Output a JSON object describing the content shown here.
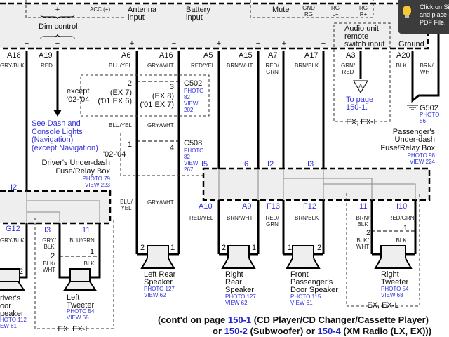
{
  "unit": {
    "plus": "+",
    "dim_control": "Dim control",
    "acc": "ACC (+)",
    "antenna": [
      "Antenna",
      "input"
    ],
    "battery": [
      "Battery",
      "input"
    ],
    "mute": "Mute",
    "gnd_rg": [
      "GND",
      "RG"
    ],
    "rg_l": [
      "RG",
      "L+"
    ],
    "rg_r": [
      "RG",
      "R+"
    ],
    "remote": [
      "Audio unit",
      "remote",
      "switch input"
    ],
    "ground": "Ground",
    "polarity": [
      "−",
      "−",
      "+",
      "−",
      "+",
      "−",
      "+",
      "−"
    ]
  },
  "pins_top": [
    "A18",
    "A19",
    "A6",
    "A16",
    "A5",
    "A15",
    "A7",
    "A17",
    "A3",
    "A20"
  ],
  "wires_top": [
    "GRY/BLK",
    "RED",
    "BLU/YEL",
    "GRY/WHT",
    "RED/YEL",
    "BRN/WHT",
    "RED/",
    "GRN",
    "BRN/BLK",
    "GRN/",
    "RED",
    "BLK",
    "BRN/",
    "WHT"
  ],
  "c502": {
    "except": [
      "except",
      "'02-'04"
    ],
    "pin2": [
      "2",
      "(EX 7)",
      "('01 EX 6)"
    ],
    "pin3": [
      "3",
      "(EX 8)",
      "('01 EX 7)"
    ],
    "name": "C502",
    "photo": [
      "PHOTO",
      "82",
      "VIEW",
      "202"
    ]
  },
  "mid_wires": [
    "BLU/YEL",
    "GRY/WHT"
  ],
  "see_dash": [
    "See Dash and",
    "Console Lights",
    "(Navigation)",
    "(except Navigation)"
  ],
  "c508": {
    "years": "'02-'04",
    "pin1": "1",
    "pin4": "4",
    "name": "C508",
    "photo": [
      "PHOTO",
      "82",
      "VIEW",
      "267"
    ]
  },
  "driver_box": {
    "name": [
      "Driver's Under-dash",
      "Fuse/Relay Box"
    ],
    "photo": [
      "PHOTO 79",
      "VIEW 223"
    ],
    "pins": [
      "I2",
      "G12"
    ]
  },
  "to_page": {
    "marker": "A",
    "text": [
      "To page",
      "150-1."
    ],
    "variant": "EX, EX-L"
  },
  "g502": {
    "name": "G502",
    "photo": [
      "PHOTO",
      "86"
    ]
  },
  "pass_box": {
    "name": [
      "Passenger's",
      "Under-dash",
      "Fuse/Relay Box"
    ],
    "photo": [
      "PHOTO 98",
      "VIEW 224"
    ],
    "pins_top": [
      "I5",
      "I6",
      "I2",
      "I3"
    ],
    "pins_bottom": [
      "A10",
      "A9",
      "F13",
      "F12",
      "I11",
      "I10"
    ]
  },
  "bottom_wires": [
    "BLU/",
    "YEL",
    "GRY/WHT",
    "RED/YEL",
    "BRN/WHT",
    "RED/",
    "GRN",
    "BRN/BLK",
    "BRN/",
    "BLK",
    "RED/GRN",
    "BLK/",
    "WHT",
    "BLK",
    "GRY/BLK"
  ],
  "left_tweeter": {
    "pins": [
      "I3",
      "I11"
    ],
    "wires": [
      "GRY/",
      "BLK",
      "BLU/GRN",
      "BLK/",
      "WHT",
      "BLK"
    ],
    "terms": [
      "2",
      "1"
    ],
    "name": [
      "Left",
      "Tweeter"
    ],
    "photo": [
      "PHOTO 54",
      "VIEW 68"
    ],
    "variant": "EX, EX-L"
  },
  "right_tweeter": {
    "terms": [
      "2",
      "1"
    ],
    "name": [
      "Right",
      "Tweeter"
    ],
    "photo": [
      "PHOTO 54",
      "VIEW 68"
    ],
    "variant": "EX, EX-L"
  },
  "speakers": {
    "driver": {
      "name": [
        "river's",
        "oor",
        "peaker"
      ],
      "photo": [
        "HOTO 112",
        "EW 61"
      ],
      "term": "2"
    },
    "left_rear": {
      "name": [
        "Left Rear",
        "Speaker"
      ],
      "photo": [
        "PHOTO 127",
        "VIEW 62"
      ],
      "terms": [
        "2",
        "1"
      ]
    },
    "right_rear": {
      "name": [
        "Right",
        "Rear",
        "Speaker"
      ],
      "photo": [
        "PHOTO 127",
        "VIEW 62"
      ],
      "terms": [
        "2",
        "1"
      ]
    },
    "front_pass": {
      "name": [
        "Front",
        "Passenger's",
        "Door Speaker"
      ],
      "photo": [
        "PHOTO 115",
        "VIEW 61"
      ],
      "terms": [
        "1",
        "2"
      ]
    }
  },
  "footer": {
    "l1a": "(cont'd on page ",
    "l1b": "150-1",
    "l1c": " (CD Player/CD Changer/Cassette Player)",
    "l2a": "or ",
    "l2b": "150-2",
    "l2c": " (Subwoofer) or ",
    "l2d": "150-4",
    "l2e": " (XM Radio (LX, EX)))"
  },
  "tooltip": {
    "icon": "lightbulb-icon",
    "lines": [
      "Click on Sig",
      "and place si",
      "PDF File."
    ]
  }
}
